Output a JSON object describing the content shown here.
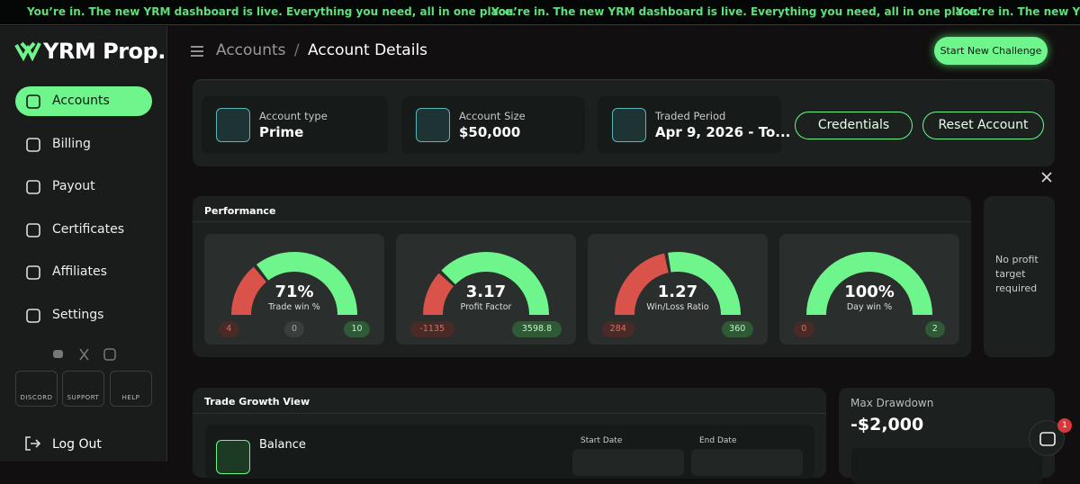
{
  "banner": {
    "text": "You’re in. The new YRM dashboard is live. Everything you need, all in one place."
  },
  "logo": "YRM Prop.",
  "breadcrumb": {
    "items": [
      "Accounts",
      "Account Details"
    ],
    "separator": "/"
  },
  "header_button": "Start New Challenge",
  "sidebar": {
    "nav": [
      "Accounts",
      "Billing",
      "Payout",
      "Certificates",
      "Affiliates",
      "Settings"
    ],
    "support": [
      "DISCORD",
      "SUPPORT",
      "HELP"
    ],
    "logout": "Log Out"
  },
  "account": {
    "tiles": [
      {
        "label": "Account type",
        "value": "Prime"
      },
      {
        "label": "Account Size",
        "value": "$50,000"
      },
      {
        "label": "Traded Period",
        "value": "Apr 9, 2026 - To..."
      }
    ],
    "buttons": [
      "Credentials",
      "Reset Account"
    ]
  },
  "performance": {
    "title": "Performance",
    "gauges": [
      {
        "value": "71%",
        "label": "Trade win %",
        "stats": [
          "4",
          "0",
          "10"
        ]
      },
      {
        "value": "3.17",
        "label": "Profit Factor",
        "stats": [
          "-1135",
          "3598.8"
        ]
      },
      {
        "value": "1.27",
        "label": "Win/Loss Ratio",
        "stats": [
          "284",
          "360"
        ]
      },
      {
        "value": "100%",
        "label": "Day win %",
        "stats": [
          "0",
          "2"
        ]
      }
    ],
    "note": "No profit target required"
  },
  "trade_growth": {
    "title": "Trade Growth View",
    "balance_label": "Balance",
    "start_date": "Start Date",
    "end_date": "End Date"
  },
  "drawdown": {
    "label": "Max Drawdown",
    "value": "-$2,000"
  },
  "chat": {
    "badge": "1"
  }
}
